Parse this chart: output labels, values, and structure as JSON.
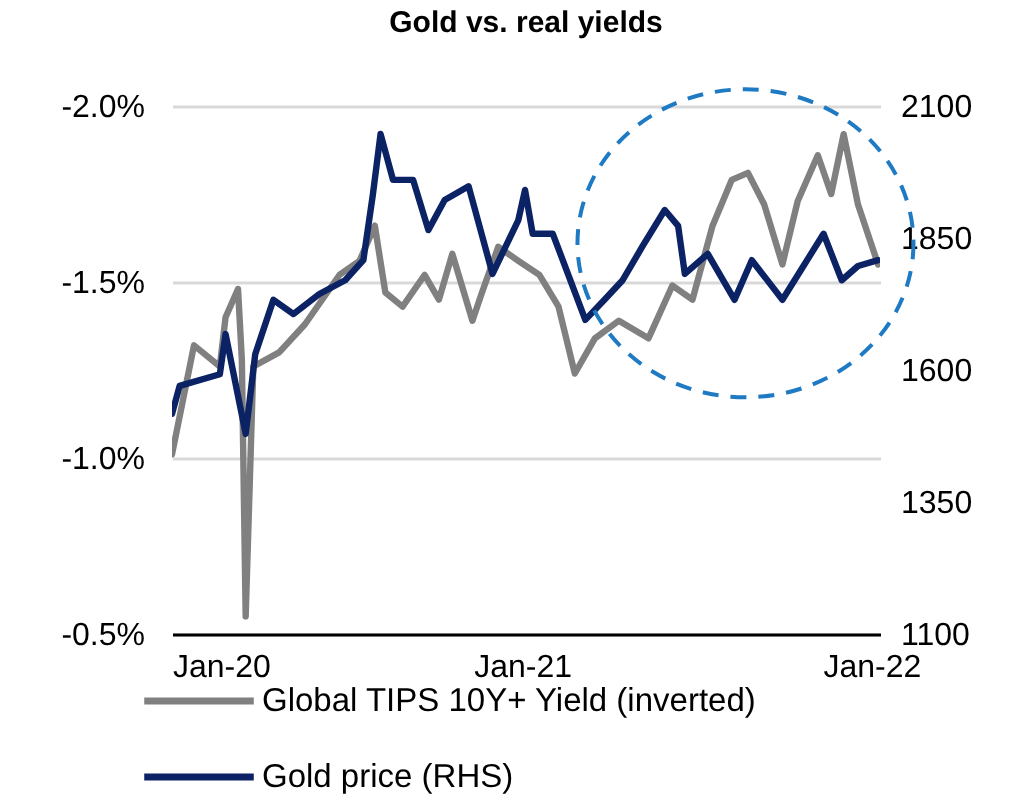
{
  "chart_data": {
    "type": "line",
    "title": "Gold vs. real yields",
    "xlim": [
      "2020-01-01",
      "2022-01-10"
    ],
    "xticks": [
      {
        "value": "2020-01-01",
        "label": "Jan-20"
      },
      {
        "value": "2021-01-01",
        "label": "Jan-21"
      },
      {
        "value": "2022-01-01",
        "label": "Jan-22"
      }
    ],
    "ylim": [
      -0.5,
      -2.0
    ],
    "yticks": [
      {
        "value": -2.0,
        "label": "-2.0%"
      },
      {
        "value": -1.5,
        "label": "-1.5%"
      },
      {
        "value": -1.0,
        "label": "-1.0%"
      },
      {
        "value": -0.5,
        "label": "-0.5%"
      }
    ],
    "y2lim": [
      1100,
      2100
    ],
    "y2ticks": [
      1100,
      1350,
      1600,
      1850,
      2100
    ],
    "grid": "y",
    "legend": "bottom",
    "series": [
      {
        "name": "Global TIPS 10Y+ Yield (inverted)",
        "color": "#808080",
        "x": [
          "2020-01-01",
          "2020-01-24",
          "2020-02-20",
          "2020-02-26",
          "2020-03-10",
          "2020-03-14",
          "2020-03-18",
          "2020-03-26",
          "2020-04-22",
          "2020-05-19",
          "2020-06-24",
          "2020-07-15",
          "2020-07-31",
          "2020-08-11",
          "2020-08-29",
          "2020-09-21",
          "2020-10-06",
          "2020-10-20",
          "2020-11-10",
          "2020-11-20",
          "2020-12-07",
          "2020-12-28",
          "2021-01-19",
          "2021-02-08",
          "2021-02-25",
          "2021-03-18",
          "2021-04-12",
          "2021-05-13",
          "2021-06-07",
          "2021-06-28",
          "2021-07-19",
          "2021-08-08",
          "2021-08-25",
          "2021-09-11",
          "2021-09-30",
          "2021-10-16",
          "2021-11-06",
          "2021-11-20",
          "2021-12-03",
          "2021-12-18",
          "2022-01-08"
        ],
        "values": [
          -1.01,
          -1.32,
          -1.26,
          -1.4,
          -1.48,
          -1.28,
          -0.55,
          -1.26,
          -1.3,
          -1.38,
          -1.52,
          -1.56,
          -1.66,
          -1.47,
          -1.43,
          -1.52,
          -1.45,
          -1.58,
          -1.39,
          -1.47,
          -1.6,
          -1.56,
          -1.52,
          -1.43,
          -1.24,
          -1.34,
          -1.39,
          -1.34,
          -1.49,
          -1.45,
          -1.66,
          -1.79,
          -1.81,
          -1.72,
          -1.55,
          -1.73,
          -1.86,
          -1.75,
          -1.92,
          -1.72,
          -1.55
        ]
      },
      {
        "name": "Gold price (RHS)",
        "color": "#0b2265",
        "axis": "y2",
        "x": [
          "2020-01-01",
          "2020-01-09",
          "2020-02-20",
          "2020-02-26",
          "2020-03-18",
          "2020-03-28",
          "2020-04-16",
          "2020-05-07",
          "2020-06-03",
          "2020-06-30",
          "2020-07-19",
          "2020-07-29",
          "2020-08-06",
          "2020-08-19",
          "2020-09-09",
          "2020-09-25",
          "2020-10-12",
          "2020-11-06",
          "2020-12-01",
          "2020-12-28",
          "2021-01-04",
          "2021-01-12",
          "2021-02-02",
          "2021-03-08",
          "2021-03-28",
          "2021-04-16",
          "2021-05-07",
          "2021-05-30",
          "2021-06-13",
          "2021-06-20",
          "2021-07-14",
          "2021-08-11",
          "2021-08-29",
          "2021-09-30",
          "2021-10-22",
          "2021-11-12",
          "2021-12-01",
          "2021-12-18",
          "2022-01-08"
        ],
        "values": [
          1517,
          1570,
          1592,
          1668,
          1479,
          1630,
          1733,
          1706,
          1744,
          1770,
          1808,
          1933,
          2047,
          1960,
          1960,
          1865,
          1922,
          1948,
          1782,
          1884,
          1941,
          1858,
          1858,
          1695,
          1733,
          1770,
          1835,
          1903,
          1873,
          1782,
          1820,
          1733,
          1808,
          1733,
          1797,
          1858,
          1770,
          1797,
          1808
        ]
      }
    ]
  }
}
